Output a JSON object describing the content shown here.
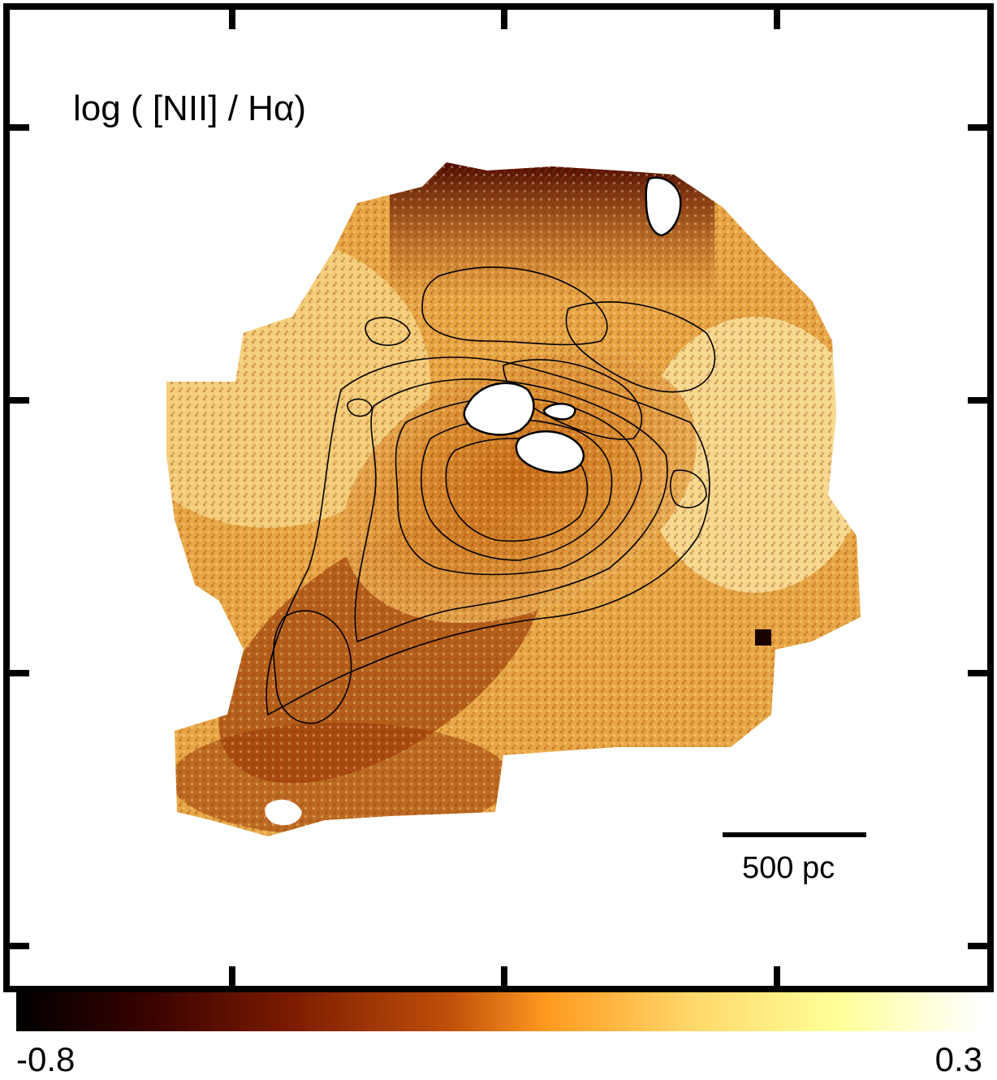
{
  "figure": {
    "title": "log ( [NII] / Hα)",
    "scale_bar_label": "500 pc"
  },
  "colorbar": {
    "min_label": "-0.8",
    "max_label": "0.3",
    "min_value": -0.8,
    "max_value": 0.3,
    "colormap_stops": [
      "#000000",
      "#3a0300",
      "#7a1a00",
      "#c0500a",
      "#ff9a20",
      "#ffd86a",
      "#ffff99",
      "#ffffff"
    ]
  },
  "colors": {
    "frame": "#000000",
    "background": "#ffffff",
    "contour": "#000000"
  }
}
